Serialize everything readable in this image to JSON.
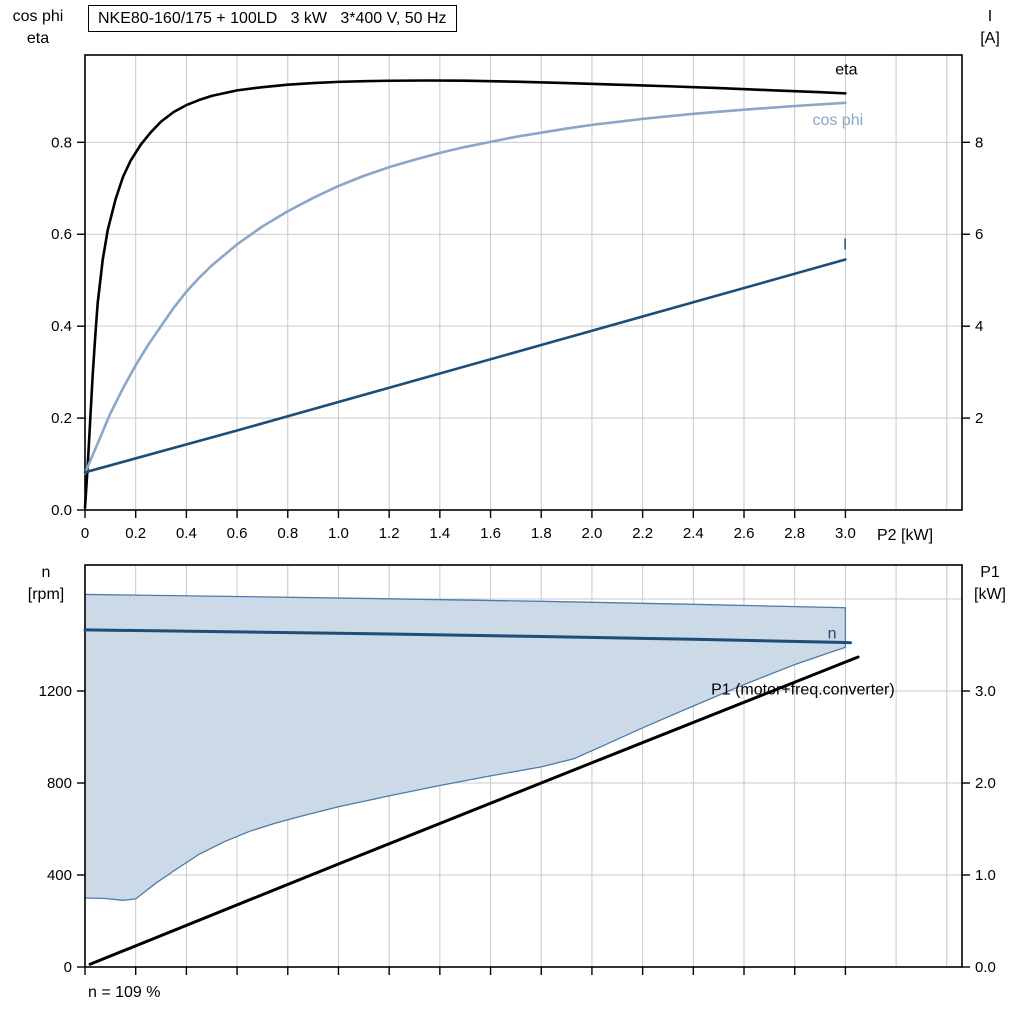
{
  "page": {
    "footnote": "n = 109 %"
  },
  "colors": {
    "black": "#000000",
    "dark_blue": "#1d4e79",
    "light_blue": "#8aa6c8",
    "band_fill": "#ccd9e6",
    "band_edge": "#4d7bab",
    "grid": "#c9c9c9"
  },
  "chart_data": [
    {
      "type": "line",
      "title": "NKE80-160/175 + 100LD   3 kW   3*400 V, 50 Hz",
      "x_axis": {
        "min": 0,
        "max": 3.46,
        "grid_step": 0.2,
        "label": "P2 [kW]",
        "ticks": [
          0,
          0.2,
          0.4,
          0.6,
          0.8,
          1.0,
          1.2,
          1.4,
          1.6,
          1.8,
          2.0,
          2.2,
          2.4,
          2.6,
          2.8,
          3.0
        ],
        "tick_labels": [
          "0",
          "0.2",
          "0.4",
          "0.6",
          "0.8",
          "1.0",
          "1.2",
          "1.4",
          "1.6",
          "1.8",
          "2.0",
          "2.2",
          "2.4",
          "2.6",
          "2.8",
          "3.0"
        ]
      },
      "y_left": {
        "label_lines": [
          "cos phi",
          "eta"
        ],
        "min": 0,
        "max": 0.99,
        "grid_step": 0.2,
        "ticks": [
          0,
          0.2,
          0.4,
          0.6,
          0.8
        ],
        "tick_labels": [
          "0.0",
          "0.2",
          "0.4",
          "0.6",
          "0.8"
        ]
      },
      "y_right": {
        "label_lines": [
          "I",
          "[A]"
        ],
        "min": 0,
        "max": 9.9,
        "ticks": [
          2,
          4,
          6,
          8
        ],
        "tick_labels": [
          "2",
          "4",
          "6",
          "8"
        ]
      },
      "series": [
        {
          "name": "eta",
          "axis": "left",
          "color_key": "black",
          "width": 2.6,
          "label": {
            "text": "eta",
            "x": 2.96,
            "y": 0.948
          },
          "points": [
            [
              0,
              0.005
            ],
            [
              0.01,
              0.09
            ],
            [
              0.02,
              0.19
            ],
            [
              0.03,
              0.29
            ],
            [
              0.04,
              0.375
            ],
            [
              0.05,
              0.45
            ],
            [
              0.07,
              0.545
            ],
            [
              0.09,
              0.61
            ],
            [
              0.12,
              0.675
            ],
            [
              0.15,
              0.725
            ],
            [
              0.18,
              0.76
            ],
            [
              0.22,
              0.795
            ],
            [
              0.26,
              0.822
            ],
            [
              0.3,
              0.845
            ],
            [
              0.35,
              0.866
            ],
            [
              0.4,
              0.881
            ],
            [
              0.45,
              0.892
            ],
            [
              0.5,
              0.901
            ],
            [
              0.6,
              0.913
            ],
            [
              0.7,
              0.92
            ],
            [
              0.8,
              0.9255
            ],
            [
              0.9,
              0.929
            ],
            [
              1.0,
              0.9315
            ],
            [
              1.1,
              0.933
            ],
            [
              1.2,
              0.934
            ],
            [
              1.35,
              0.9345
            ],
            [
              1.5,
              0.934
            ],
            [
              1.7,
              0.932
            ],
            [
              1.9,
              0.929
            ],
            [
              2.1,
              0.9255
            ],
            [
              2.3,
              0.922
            ],
            [
              2.5,
              0.918
            ],
            [
              2.7,
              0.9135
            ],
            [
              2.9,
              0.909
            ],
            [
              3.0,
              0.9065
            ]
          ]
        },
        {
          "name": "cos-phi",
          "axis": "left",
          "color_key": "light_blue",
          "width": 2.6,
          "label": {
            "text": "cos phi",
            "x": 2.87,
            "y": 0.838
          },
          "points": [
            [
              0,
              0.08
            ],
            [
              0.05,
              0.145
            ],
            [
              0.1,
              0.21
            ],
            [
              0.15,
              0.265
            ],
            [
              0.2,
              0.315
            ],
            [
              0.25,
              0.36
            ],
            [
              0.3,
              0.4
            ],
            [
              0.35,
              0.44
            ],
            [
              0.4,
              0.475
            ],
            [
              0.45,
              0.505
            ],
            [
              0.5,
              0.532
            ],
            [
              0.6,
              0.578
            ],
            [
              0.7,
              0.617
            ],
            [
              0.8,
              0.65
            ],
            [
              0.9,
              0.679
            ],
            [
              1.0,
              0.705
            ],
            [
              1.1,
              0.727
            ],
            [
              1.2,
              0.746
            ],
            [
              1.3,
              0.762
            ],
            [
              1.4,
              0.777
            ],
            [
              1.5,
              0.79
            ],
            [
              1.6,
              0.801
            ],
            [
              1.7,
              0.812
            ],
            [
              1.8,
              0.821
            ],
            [
              1.9,
              0.83
            ],
            [
              2.0,
              0.838
            ],
            [
              2.2,
              0.851
            ],
            [
              2.4,
              0.862
            ],
            [
              2.6,
              0.871
            ],
            [
              2.8,
              0.879
            ],
            [
              3.0,
              0.886
            ]
          ]
        },
        {
          "name": "current-I",
          "axis": "right",
          "color_key": "dark_blue",
          "width": 2.6,
          "label": {
            "text": "I",
            "x": 2.99,
            "y": 5.67
          },
          "points": [
            [
              0,
              0.82
            ],
            [
              0.6,
              1.73
            ],
            [
              1.2,
              2.66
            ],
            [
              1.8,
              3.59
            ],
            [
              2.4,
              4.52
            ],
            [
              3.0,
              5.45
            ]
          ]
        }
      ]
    },
    {
      "type": "line",
      "x_axis": {
        "min": 0,
        "max": 3.46,
        "grid_step": 0.2,
        "ticks": [
          0,
          0.2,
          0.4,
          0.6,
          0.8,
          1.0,
          1.2,
          1.4,
          1.6,
          1.8,
          2.0,
          2.2,
          2.4,
          2.6,
          2.8,
          3.0
        ]
      },
      "y_left": {
        "label_lines": [
          "n",
          "[rpm]"
        ],
        "min": 0,
        "max": 1748,
        "grid_step": 400,
        "ticks": [
          0,
          400,
          800,
          1200
        ],
        "tick_labels": [
          "0",
          "400",
          "800",
          "1200"
        ]
      },
      "y_right": {
        "label_lines": [
          "P1",
          "[kW]"
        ],
        "min": 0,
        "max": 4.37,
        "ticks": [
          0,
          1,
          2,
          3
        ],
        "tick_labels": [
          "0.0",
          "1.0",
          "2.0",
          "3.0"
        ]
      },
      "band": {
        "name": "speed-control-range",
        "fill_key": "band_fill",
        "edge_key": "band_edge",
        "upper": [
          [
            0,
            1620
          ],
          [
            0.6,
            1611
          ],
          [
            1.2,
            1601
          ],
          [
            1.8,
            1590
          ],
          [
            2.4,
            1577
          ],
          [
            3.0,
            1562
          ]
        ],
        "lower": [
          [
            0,
            300
          ],
          [
            0.08,
            298
          ],
          [
            0.15,
            290
          ],
          [
            0.2,
            296
          ],
          [
            0.28,
            365
          ],
          [
            0.36,
            425
          ],
          [
            0.45,
            490
          ],
          [
            0.55,
            545
          ],
          [
            0.65,
            590
          ],
          [
            0.75,
            625
          ],
          [
            0.85,
            655
          ],
          [
            1.0,
            697
          ],
          [
            1.2,
            744
          ],
          [
            1.4,
            789
          ],
          [
            1.6,
            831
          ],
          [
            1.8,
            870
          ],
          [
            1.93,
            906
          ],
          [
            2.05,
            965
          ],
          [
            2.2,
            1040
          ],
          [
            2.4,
            1135
          ],
          [
            2.6,
            1228
          ],
          [
            2.8,
            1315
          ],
          [
            2.95,
            1372
          ],
          [
            3.0,
            1390
          ]
        ]
      },
      "series": [
        {
          "name": "speed-n",
          "axis": "left",
          "color_key": "dark_blue",
          "width": 3,
          "label": {
            "text": "n",
            "x": 2.93,
            "y": 1428
          },
          "points": [
            [
              0,
              1466
            ],
            [
              0.6,
              1457
            ],
            [
              1.2,
              1448
            ],
            [
              1.8,
              1437
            ],
            [
              2.4,
              1425
            ],
            [
              3.0,
              1411
            ],
            [
              3.02,
              1410
            ]
          ]
        },
        {
          "name": "P1",
          "axis": "right",
          "color_key": "black",
          "width": 3,
          "label": {
            "text": "P1 (motor+freq.converter)",
            "x": 2.47,
            "y": 2.96
          },
          "points": [
            [
              0.02,
              0.03
            ],
            [
              1.0,
              1.12
            ],
            [
              2.0,
              2.22
            ],
            [
              3.05,
              3.37
            ]
          ]
        }
      ]
    }
  ]
}
